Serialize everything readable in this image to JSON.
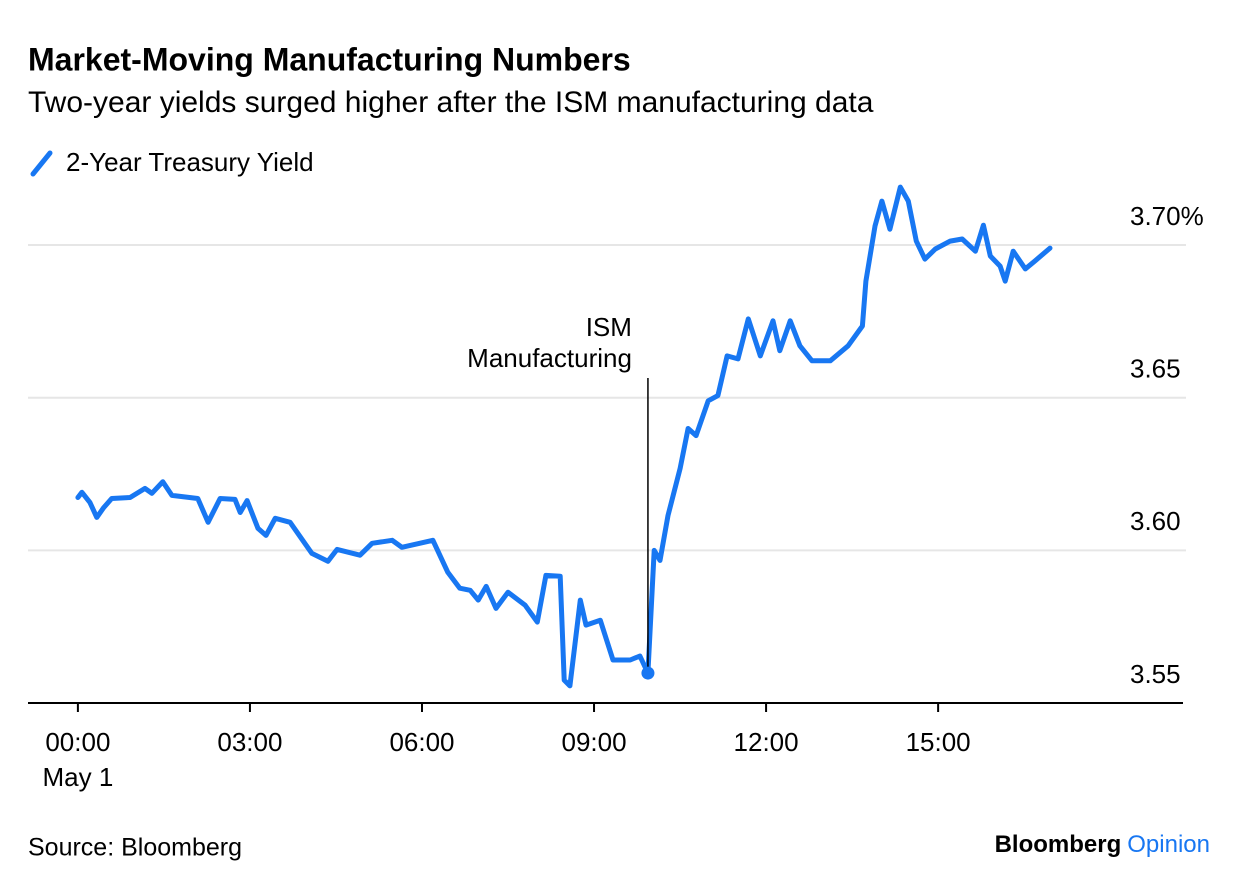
{
  "chart_data": {
    "type": "line",
    "title": "Market-Moving Manufacturing Numbers",
    "subtitle": "Two-year yields surged higher after the ISM manufacturing data",
    "x": [
      0,
      0.07,
      0.21,
      0.33,
      0.45,
      0.59,
      0.91,
      1.17,
      1.29,
      1.48,
      1.64,
      2.09,
      2.27,
      2.48,
      2.74,
      2.83,
      2.95,
      3.14,
      3.28,
      3.44,
      3.7,
      3.92,
      4.08,
      4.36,
      4.52,
      4.92,
      5.13,
      5.48,
      5.65,
      6.19,
      6.45,
      6.66,
      6.84,
      6.98,
      7.12,
      7.29,
      7.5,
      7.8,
      8.01,
      8.16,
      8.41,
      8.48,
      8.58,
      8.76,
      8.86,
      9.11,
      9.33,
      9.63,
      9.8,
      9.94,
      10.05,
      10.15,
      10.29,
      10.5,
      10.64,
      10.78,
      10.99,
      11.16,
      11.32,
      11.51,
      11.69,
      11.9,
      12.12,
      12.24,
      12.42,
      12.59,
      12.8,
      13.12,
      13.43,
      13.68,
      13.74,
      13.9,
      14.02,
      14.16,
      14.34,
      14.48,
      14.62,
      14.77,
      14.95,
      15.21,
      15.42,
      15.65,
      15.79,
      15.91,
      16.08,
      16.17,
      16.31,
      16.52,
      16.69,
      16.95
    ],
    "series": [
      {
        "name": "2-Year Treasury Yield",
        "color": "#1877f2",
        "values": [
          3.6173,
          3.619,
          3.6157,
          3.6108,
          3.614,
          3.617,
          3.6173,
          3.6203,
          3.6187,
          3.6225,
          3.618,
          3.617,
          3.6092,
          3.617,
          3.6167,
          3.6124,
          3.6163,
          3.6072,
          3.6049,
          3.6105,
          3.6092,
          3.6033,
          3.599,
          3.5964,
          3.6003,
          3.5984,
          3.6023,
          3.6033,
          3.601,
          3.6033,
          3.5928,
          3.5876,
          3.5869,
          3.5837,
          3.5882,
          3.581,
          3.5863,
          3.582,
          3.5765,
          3.5918,
          3.5915,
          3.5575,
          3.5556,
          3.5837,
          3.5755,
          3.5771,
          3.5641,
          3.5641,
          3.5654,
          3.5598,
          3.6,
          3.5967,
          3.6114,
          3.6268,
          3.6399,
          3.6376,
          3.649,
          3.6507,
          3.6637,
          3.6627,
          3.6758,
          3.6637,
          3.6752,
          3.6654,
          3.6752,
          3.667,
          3.6621,
          3.6621,
          3.667,
          3.6735,
          3.6882,
          3.7062,
          3.7144,
          3.7052,
          3.719,
          3.7144,
          3.7013,
          3.6954,
          3.6987,
          3.7013,
          3.702,
          3.698,
          3.7065,
          3.6964,
          3.6931,
          3.6882,
          3.698,
          3.6922,
          3.6948,
          3.699
        ]
      }
    ],
    "xlim": [
      -0.87,
      19.27
    ],
    "xticks": [
      {
        "value": 0,
        "label": "00:00"
      },
      {
        "value": 3,
        "label": "03:00"
      },
      {
        "value": 6,
        "label": "06:00"
      },
      {
        "value": 9,
        "label": "09:00"
      },
      {
        "value": 12,
        "label": "12:00"
      },
      {
        "value": 15,
        "label": "15:00"
      }
    ],
    "x_date_label": "May 1",
    "ylim": [
      3.55,
      3.72
    ],
    "yticks": [
      3.55,
      {
        "value": 3.6,
        "label": "3.60"
      },
      3.65,
      {
        "value": 3.7,
        "label": "3.70%"
      }
    ],
    "grid": true,
    "annotation": {
      "lines": [
        "ISM",
        "Manufacturing"
      ],
      "x": 9.94,
      "y": 3.5598
    },
    "source": "Source: Bloomberg",
    "brand": [
      "Bloomberg",
      "Opinion"
    ]
  }
}
